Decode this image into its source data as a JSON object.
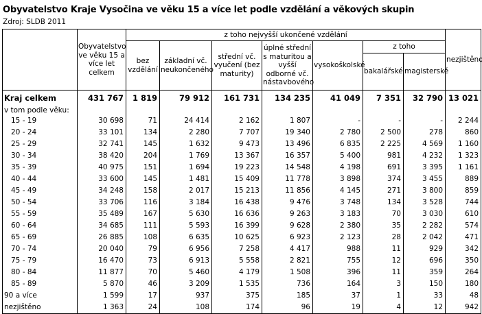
{
  "title": "Obyvatelstvo Kraje Vysočina ve věku 15 a více let podle vzdělání a věkových skupin",
  "source": "Zdroj: SLDB 2011",
  "headers": {
    "population": "Obyvatelstvo ve věku 15 a více let celkem",
    "group": "z toho nejvyšší ukončené vzdělání",
    "none": "bez vzdělání",
    "basic": "základní vč. neukončeného",
    "secondary": "střední vč. vyučení (bez maturity)",
    "full_secondary": "úplné střední s maturitou a vyšší odborné vč. nástavbového",
    "university": "vysokoškolské",
    "of_which": "z toho",
    "bachelor": "bakalářské",
    "master": "magisterské",
    "unknown": "nezjištěno"
  },
  "total": {
    "label": "Kraj celkem",
    "values": [
      "431 767",
      "1 819",
      "79 912",
      "161 731",
      "134 235",
      "41 049",
      "7 351",
      "32 790",
      "13 021"
    ]
  },
  "subheading": "v tom podle věku:",
  "rows": [
    {
      "label": "15 - 19",
      "values": [
        "30 698",
        "71",
        "24 414",
        "2 162",
        "1 807",
        "-",
        "-",
        "-",
        "2 244"
      ]
    },
    {
      "label": "20 - 24",
      "values": [
        "33 101",
        "134",
        "2 280",
        "7 707",
        "19 340",
        "2 780",
        "2 500",
        "278",
        "860"
      ]
    },
    {
      "label": "25 - 29",
      "values": [
        "32 741",
        "145",
        "1 632",
        "9 473",
        "13 496",
        "6 835",
        "2 225",
        "4 569",
        "1 160"
      ]
    },
    {
      "label": "30 - 34",
      "values": [
        "38 420",
        "204",
        "1 769",
        "13 367",
        "16 357",
        "5 400",
        "981",
        "4 232",
        "1 323"
      ]
    },
    {
      "label": "35 - 39",
      "values": [
        "40 975",
        "151",
        "1 694",
        "19 223",
        "14 548",
        "4 198",
        "691",
        "3 395",
        "1 161"
      ]
    },
    {
      "label": "40 - 44",
      "values": [
        "33 600",
        "145",
        "1 481",
        "15 409",
        "11 778",
        "3 898",
        "374",
        "3 455",
        "889"
      ]
    },
    {
      "label": "45 - 49",
      "values": [
        "34 248",
        "158",
        "2 017",
        "15 213",
        "11 856",
        "4 145",
        "271",
        "3 800",
        "859"
      ]
    },
    {
      "label": "50 - 54",
      "values": [
        "33 706",
        "116",
        "3 184",
        "16 438",
        "9 476",
        "3 748",
        "134",
        "3 528",
        "744"
      ]
    },
    {
      "label": "55 - 59",
      "values": [
        "35 489",
        "167",
        "5 630",
        "16 636",
        "9 263",
        "3 183",
        "70",
        "3 030",
        "610"
      ]
    },
    {
      "label": "60 - 64",
      "values": [
        "34 685",
        "111",
        "5 593",
        "16 399",
        "9 628",
        "2 380",
        "35",
        "2 282",
        "574"
      ]
    },
    {
      "label": "65 - 69",
      "values": [
        "26 885",
        "108",
        "6 635",
        "10 625",
        "6 923",
        "2 123",
        "28",
        "2 042",
        "471"
      ]
    },
    {
      "label": "70 - 74",
      "values": [
        "20 040",
        "79",
        "6 956",
        "7 258",
        "4 417",
        "988",
        "11",
        "929",
        "342"
      ]
    },
    {
      "label": "75 - 79",
      "values": [
        "16 470",
        "73",
        "6 913",
        "5 558",
        "2 821",
        "755",
        "12",
        "696",
        "350"
      ]
    },
    {
      "label": "80 - 84",
      "values": [
        "11 877",
        "70",
        "5 460",
        "4 179",
        "1 508",
        "396",
        "11",
        "359",
        "264"
      ]
    },
    {
      "label": "85 - 89",
      "values": [
        "5 870",
        "46",
        "3 209",
        "1 535",
        "736",
        "164",
        "3",
        "150",
        "180"
      ]
    },
    {
      "label": "90 a více",
      "values": [
        "1 599",
        "17",
        "937",
        "375",
        "185",
        "37",
        "1",
        "33",
        "48"
      ]
    },
    {
      "label": "nezjištěno",
      "values": [
        "1 363",
        "24",
        "108",
        "174",
        "96",
        "19",
        "4",
        "12",
        "942"
      ]
    }
  ]
}
